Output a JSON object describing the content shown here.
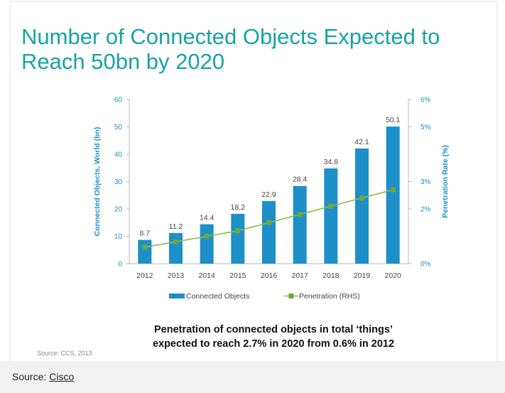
{
  "title": "Number of Connected Objects Expected to Reach 50bn by 2020",
  "caption_line1": "Penetration of connected objects in total ‘things’",
  "caption_line2": "expected to reach 2.7% in 2020 from 0.6% in 2012",
  "chart_source": "Source: CCS, 2013",
  "page_source_label": "Source:",
  "page_source_link": "Cisco",
  "colors": {
    "title": "#16a3a4",
    "bar": "#1d8fc9",
    "line": "#8dbb4b",
    "marker": "#6fa83a",
    "axis_text": "#1d8fc9"
  },
  "chart_data": {
    "type": "bar",
    "categories": [
      "2012",
      "2013",
      "2014",
      "2015",
      "2016",
      "2017",
      "2018",
      "2019",
      "2020"
    ],
    "series": [
      {
        "name": "Connected Objects",
        "type": "bar",
        "axis": "left",
        "values": [
          8.7,
          11.2,
          14.4,
          18.2,
          22.9,
          28.4,
          34.8,
          42.1,
          50.1
        ]
      },
      {
        "name": "Penetration (RHS)",
        "type": "line",
        "axis": "right",
        "values": [
          0.6,
          0.8,
          1.0,
          1.2,
          1.5,
          1.8,
          2.1,
          2.4,
          2.7
        ]
      }
    ],
    "ylabel": "Connected Objects, World (bn)",
    "y2label": "Penetration Rate (%)",
    "ylim": [
      0,
      60
    ],
    "y2lim": [
      0,
      6
    ],
    "yticks": [
      "0",
      "10",
      "20",
      "30",
      "40",
      "50",
      "60"
    ],
    "y2ticks": [
      "0%",
      "2%",
      "3%",
      "5%",
      "6%"
    ],
    "y2tick_values": [
      0,
      2,
      3,
      5,
      6
    ],
    "legend": [
      "Connected Objects",
      "Penetration (RHS)"
    ],
    "legend_position": "bottom",
    "grid": false
  }
}
